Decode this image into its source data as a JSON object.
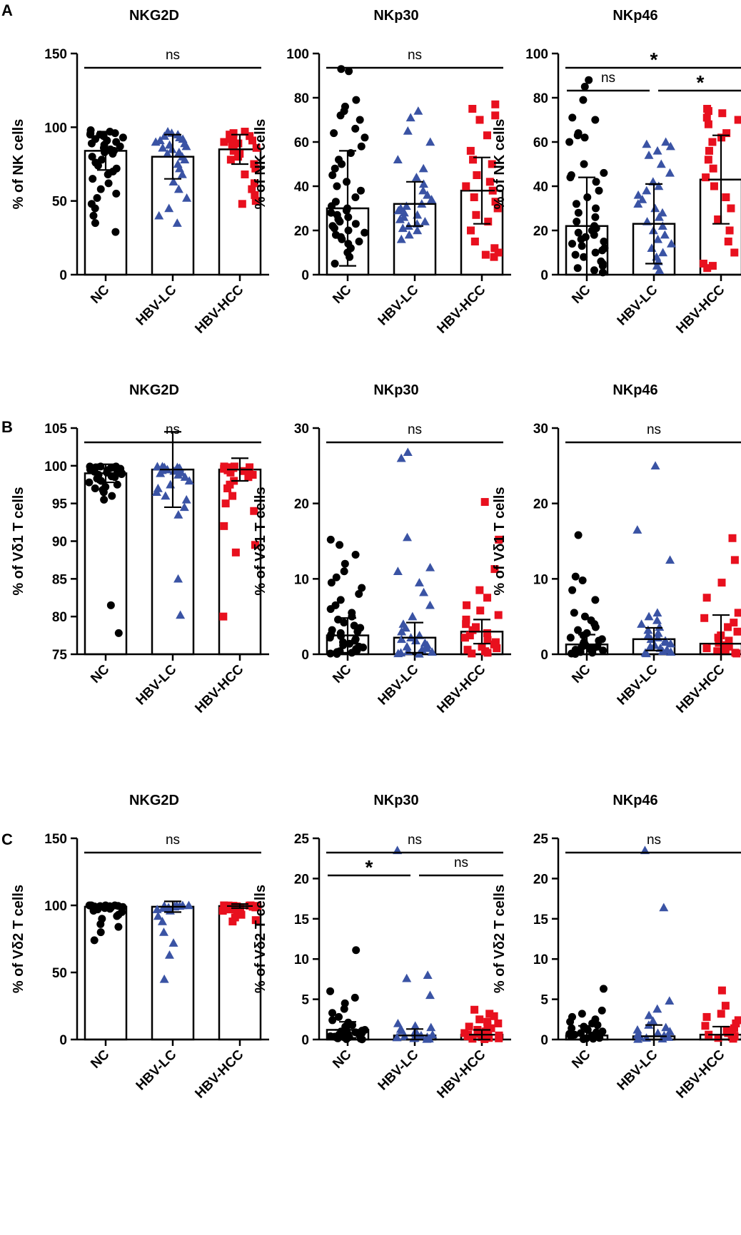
{
  "row_labels": [
    "A",
    "B",
    "C"
  ],
  "colors": {
    "NC": "#000000",
    "HBV-LC": "#3a53a4",
    "HBV-HCC": "#e8101e"
  },
  "markers": {
    "NC": "circle",
    "HBV-LC": "triangle",
    "HBV-HCC": "square"
  },
  "chart_data": [
    {
      "type": "bar",
      "panel": "A",
      "title": "NKG2D",
      "ylabel": "% of NK cells",
      "categories": [
        "NC",
        "HBV-LC",
        "HBV-HCC"
      ],
      "ylim": [
        0,
        150
      ],
      "yticks": [
        0,
        50,
        100,
        150
      ],
      "means": [
        84,
        80,
        85
      ],
      "sd": [
        13,
        15,
        10
      ],
      "points": [
        [
          98,
          97,
          96,
          96,
          95,
          95,
          94,
          93,
          92,
          91,
          90,
          89,
          88,
          87,
          86,
          85,
          84,
          84,
          83,
          82,
          80,
          78,
          76,
          74,
          72,
          70,
          68,
          65,
          62,
          58,
          55,
          52,
          48,
          45,
          40,
          35,
          29
        ],
        [
          97,
          96,
          95,
          94,
          93,
          92,
          91,
          90,
          89,
          88,
          87,
          86,
          85,
          83,
          82,
          80,
          78,
          75,
          72,
          68,
          63,
          58,
          52,
          45,
          40,
          35
        ],
        [
          97,
          96,
          95,
          94,
          93,
          92,
          91,
          90,
          89,
          88,
          86,
          84,
          82,
          80,
          78,
          75,
          72,
          68,
          62,
          58,
          54,
          50,
          48
        ]
      ],
      "significance": [
        {
          "from": 0,
          "to": 2,
          "label": "ns"
        }
      ]
    },
    {
      "type": "bar",
      "panel": "A",
      "title": "NKp30",
      "ylabel": "% of NK cells",
      "categories": [
        "NC",
        "HBV-LC",
        "HBV-HCC"
      ],
      "ylim": [
        0,
        100
      ],
      "yticks": [
        0,
        20,
        40,
        60,
        80,
        100
      ],
      "means": [
        30,
        32,
        38
      ],
      "sd": [
        26,
        10,
        15
      ],
      "points": [
        [
          93,
          92,
          79,
          76,
          74,
          72,
          70,
          66,
          64,
          62,
          58,
          55,
          52,
          50,
          48,
          45,
          42,
          40,
          38,
          35,
          33,
          31,
          30,
          29,
          28,
          27,
          26,
          25,
          24,
          23,
          22,
          21,
          20,
          19,
          18,
          17,
          16,
          15,
          14,
          12,
          10,
          8,
          5
        ],
        [
          74,
          71,
          65,
          60,
          52,
          48,
          44,
          41,
          38,
          36,
          34,
          32,
          31,
          30,
          29,
          28,
          27,
          26,
          25,
          24,
          23,
          22,
          21,
          20,
          18,
          16
        ],
        [
          77,
          75,
          72,
          70,
          63,
          56,
          52,
          50,
          45,
          42,
          40,
          38,
          35,
          33,
          30,
          27,
          24,
          20,
          15,
          12,
          10,
          9,
          8
        ]
      ],
      "significance": [
        {
          "from": 0,
          "to": 2,
          "label": "ns"
        }
      ]
    },
    {
      "type": "bar",
      "panel": "A",
      "title": "NKp46",
      "ylabel": "% of NK cells",
      "categories": [
        "NC",
        "HBV-LC",
        "HBV-HCC"
      ],
      "ylim": [
        0,
        100
      ],
      "yticks": [
        0,
        20,
        40,
        60,
        80,
        100
      ],
      "means": [
        22,
        23,
        43
      ],
      "sd": [
        22,
        18,
        20
      ],
      "points": [
        [
          88,
          85,
          79,
          71,
          70,
          64,
          63,
          62,
          60,
          50,
          46,
          45,
          44,
          42,
          38,
          35,
          32,
          30,
          28,
          26,
          24,
          22,
          21,
          20,
          19,
          18,
          17,
          16,
          15,
          14,
          13,
          12,
          11,
          10,
          9,
          8,
          6,
          5,
          4,
          3,
          2,
          1
        ],
        [
          60,
          59,
          58,
          56,
          54,
          50,
          46,
          42,
          40,
          38,
          36,
          34,
          32,
          30,
          28,
          26,
          24,
          22,
          20,
          18,
          16,
          14,
          12,
          10,
          8,
          6,
          4,
          2
        ],
        [
          75,
          74,
          73,
          71,
          70,
          68,
          64,
          62,
          60,
          56,
          52,
          48,
          44,
          40,
          35,
          30,
          25,
          20,
          15,
          10,
          5,
          4,
          3
        ]
      ],
      "significance": [
        {
          "from": 0,
          "to": 2,
          "label": "*"
        },
        {
          "from": 0,
          "to": 1,
          "label": "ns"
        },
        {
          "from": 1,
          "to": 2,
          "label": "*"
        }
      ]
    },
    {
      "type": "bar",
      "panel": "B",
      "title": "NKG2D",
      "ylabel": "% of Vδ1 T cells",
      "categories": [
        "NC",
        "HBV-LC",
        "HBV-HCC"
      ],
      "ylim": [
        75,
        105
      ],
      "yticks": [
        75,
        80,
        85,
        90,
        95,
        100,
        105
      ],
      "means": [
        99,
        99.5,
        99.5
      ],
      "sd": [
        1.2,
        5,
        1.5
      ],
      "points": [
        [
          99.9,
          99.9,
          99.9,
          99.8,
          99.8,
          99.8,
          99.7,
          99.7,
          99.6,
          99.5,
          99.5,
          99.4,
          99.3,
          99.2,
          99.1,
          99,
          98.9,
          98.8,
          98.6,
          98.5,
          98.3,
          98,
          97.8,
          97.5,
          97.2,
          97,
          96.8,
          96.5,
          96,
          95.5,
          81.5,
          77.8
        ],
        [
          99.9,
          99.9,
          99.8,
          99.8,
          99.7,
          99.6,
          99.5,
          99.4,
          99.3,
          99.1,
          99,
          98.8,
          98.5,
          98,
          97.5,
          97,
          96.5,
          96,
          95.5,
          94.5,
          93.5,
          85,
          80.2
        ],
        [
          99.9,
          99.9,
          99.8,
          99.8,
          99.7,
          99.7,
          99.6,
          99.5,
          99.4,
          99.3,
          99.1,
          99,
          98.8,
          98.5,
          98,
          97.5,
          97,
          96,
          95,
          94,
          92,
          89.5,
          88.5,
          80
        ]
      ],
      "significance": [
        {
          "from": 0,
          "to": 2,
          "label": "ns"
        }
      ]
    },
    {
      "type": "bar",
      "panel": "B",
      "title": "NKp30",
      "ylabel": "% of Vδ1 T cells",
      "categories": [
        "NC",
        "HBV-LC",
        "HBV-HCC"
      ],
      "ylim": [
        0,
        30
      ],
      "yticks": [
        0,
        10,
        20,
        30
      ],
      "means": [
        2.5,
        2.2,
        3.0
      ],
      "sd": [
        2.3,
        2.0,
        1.6
      ],
      "points": [
        [
          15.2,
          14.5,
          13.2,
          12,
          11,
          10.2,
          9.5,
          8.8,
          8,
          7.2,
          6.5,
          6,
          5.5,
          5,
          4.6,
          4.2,
          3.8,
          3.5,
          3.2,
          3,
          2.8,
          2.6,
          2.4,
          2.2,
          2,
          1.8,
          1.6,
          1.4,
          1.2,
          1,
          0.9,
          0.7,
          0.5,
          0.4,
          0.3,
          0.2,
          0.1,
          0.05
        ],
        [
          26.8,
          26,
          15.5,
          11.5,
          11,
          9.5,
          8.2,
          6.5,
          5,
          4,
          3.5,
          3,
          2.5,
          2.2,
          2,
          1.8,
          1.5,
          1.2,
          1,
          0.8,
          0.6,
          0.4,
          0.3,
          0.2,
          0.1,
          0.05
        ],
        [
          20.2,
          15.2,
          11.3,
          8.5,
          7.5,
          6.5,
          5.8,
          5.2,
          4.6,
          4,
          3.6,
          3.2,
          2.8,
          2.5,
          2.2,
          1.9,
          1.6,
          1.3,
          1,
          0.8,
          0.6,
          0.4,
          0.2,
          0.1
        ]
      ],
      "significance": [
        {
          "from": 0,
          "to": 2,
          "label": "ns"
        }
      ]
    },
    {
      "type": "bar",
      "panel": "B",
      "title": "NKp46",
      "ylabel": "% of Vδ1 T cells",
      "categories": [
        "NC",
        "HBV-LC",
        "HBV-HCC"
      ],
      "ylim": [
        0,
        30
      ],
      "yticks": [
        0,
        10,
        20,
        30
      ],
      "means": [
        1.3,
        2.0,
        1.4
      ],
      "sd": [
        1.3,
        1.5,
        3.8
      ],
      "points": [
        [
          15.8,
          10.3,
          9.8,
          8.5,
          7.2,
          5.5,
          5,
          4.5,
          4,
          3.6,
          3.2,
          2.8,
          2.5,
          2.2,
          2,
          1.8,
          1.6,
          1.4,
          1.2,
          1,
          0.9,
          0.8,
          0.7,
          0.6,
          0.5,
          0.4,
          0.3,
          0.2,
          0.1,
          0.05
        ],
        [
          25,
          16.5,
          12.5,
          5.5,
          5,
          4.5,
          4,
          3.6,
          3.2,
          2.8,
          2.5,
          2.2,
          2,
          1.8,
          1.6,
          1.4,
          1.2,
          1,
          0.8,
          0.6,
          0.4,
          0.3,
          0.2,
          0.1
        ],
        [
          15.4,
          12.5,
          9.5,
          7.5,
          5.5,
          4.8,
          4.2,
          3.6,
          3,
          2.5,
          2.2,
          1.8,
          1.5,
          1.2,
          1,
          0.8,
          0.6,
          0.4,
          0.2,
          0.1
        ]
      ],
      "significance": [
        {
          "from": 0,
          "to": 2,
          "label": "ns"
        }
      ]
    },
    {
      "type": "bar",
      "panel": "C",
      "title": "NKG2D",
      "ylabel": "% of Vδ2 T cells",
      "categories": [
        "NC",
        "HBV-LC",
        "HBV-HCC"
      ],
      "ylim": [
        0,
        150
      ],
      "yticks": [
        0,
        50,
        100,
        150
      ],
      "means": [
        99,
        99,
        99.5
      ],
      "sd": [
        2,
        4,
        1.5
      ],
      "points": [
        [
          100,
          100,
          100,
          100,
          99.8,
          99.8,
          99.6,
          99.5,
          99.4,
          99.2,
          99,
          98.8,
          98.5,
          98,
          97.5,
          97,
          96,
          95,
          93,
          92,
          90,
          86,
          84,
          80,
          74
        ],
        [
          100,
          100,
          99.8,
          99.7,
          99.5,
          99.3,
          99,
          98.5,
          98,
          97,
          96,
          92,
          88,
          80,
          72,
          63,
          45
        ],
        [
          100,
          100,
          99.9,
          99.8,
          99.7,
          99.6,
          99.5,
          99.3,
          99,
          98.5,
          98,
          97.5,
          97,
          96,
          95,
          93,
          91,
          89,
          88
        ]
      ],
      "significance": [
        {
          "from": 0,
          "to": 2,
          "label": "ns"
        }
      ]
    },
    {
      "type": "bar",
      "panel": "C",
      "title": "NKp30",
      "ylabel": "% of Vδ2 T cells",
      "categories": [
        "NC",
        "HBV-LC",
        "HBV-HCC"
      ],
      "ylim": [
        0,
        25
      ],
      "yticks": [
        0,
        5,
        10,
        15,
        20,
        25
      ],
      "means": [
        1.2,
        0.5,
        0.6
      ],
      "sd": [
        1.0,
        0.8,
        0.6
      ],
      "points": [
        [
          11.1,
          6,
          5.2,
          4.5,
          3.8,
          3.3,
          2.8,
          2.4,
          2.1,
          1.8,
          1.6,
          1.4,
          1.2,
          1.1,
          1,
          0.9,
          0.8,
          0.7,
          0.6,
          0.5,
          0.45,
          0.4,
          0.35,
          0.3,
          0.25,
          0.2,
          0.15,
          0.1,
          0.05,
          0.02
        ],
        [
          23.5,
          8,
          7.6,
          5.5,
          2,
          1.7,
          1.5,
          1.3,
          1.1,
          0.9,
          0.8,
          0.7,
          0.6,
          0.5,
          0.4,
          0.3,
          0.25,
          0.2,
          0.15,
          0.1,
          0.05
        ],
        [
          3.7,
          3.2,
          2.9,
          2.5,
          2.2,
          2,
          1.8,
          1.6,
          1.4,
          1.2,
          1,
          0.9,
          0.8,
          0.7,
          0.6,
          0.5,
          0.4,
          0.3,
          0.2,
          0.15,
          0.1,
          0.05
        ]
      ],
      "significance": [
        {
          "from": 0,
          "to": 2,
          "label": "ns"
        },
        {
          "from": 0,
          "to": 1,
          "label": "*"
        },
        {
          "from": 1,
          "to": 2,
          "label": "ns"
        }
      ]
    },
    {
      "type": "bar",
      "panel": "C",
      "title": "NKp46",
      "ylabel": "% of Vδ2 T cells",
      "categories": [
        "NC",
        "HBV-LC",
        "HBV-HCC"
      ],
      "ylim": [
        0,
        25
      ],
      "yticks": [
        0,
        5,
        10,
        15,
        20,
        25
      ],
      "means": [
        0.5,
        0.4,
        0.6
      ],
      "sd": [
        1.2,
        1.4,
        1.0
      ],
      "points": [
        [
          6.3,
          3.6,
          3.2,
          2.8,
          2.5,
          2.2,
          2,
          1.8,
          1.6,
          1.4,
          1.2,
          1,
          0.9,
          0.8,
          0.7,
          0.6,
          0.5,
          0.4,
          0.3,
          0.2,
          0.15,
          0.1,
          0.05
        ],
        [
          23.5,
          16.4,
          4.8,
          3.8,
          3,
          2.3,
          1.8,
          1.5,
          1.2,
          1,
          0.8,
          0.6,
          0.5,
          0.4,
          0.3,
          0.2,
          0.1,
          0.05
        ],
        [
          6.1,
          4.2,
          3.2,
          2.8,
          2.4,
          2,
          1.7,
          1.4,
          1.2,
          1,
          0.8,
          0.6,
          0.5,
          0.4,
          0.3,
          0.2,
          0.1
        ]
      ],
      "significance": [
        {
          "from": 0,
          "to": 2,
          "label": "ns"
        }
      ]
    }
  ]
}
